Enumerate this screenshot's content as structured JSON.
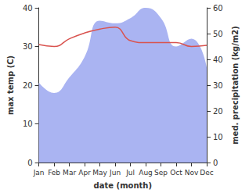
{
  "chart_data": {
    "type": "line",
    "categories": [
      "Jan",
      "Feb",
      "Mar",
      "Apr",
      "May",
      "Jun",
      "Jul",
      "Aug",
      "Sep",
      "Oct",
      "Nov",
      "Dec"
    ],
    "x_label": "date (month)",
    "y_label": "max temp (C)",
    "y2_label": "med. precipitation (kg/m2)",
    "ylim": [
      0,
      40
    ],
    "yticks": [
      0,
      10,
      20,
      30,
      40
    ],
    "y2lim": [
      0,
      60
    ],
    "y2ticks": [
      0,
      10,
      20,
      30,
      40,
      50,
      60
    ],
    "grid": false,
    "series": [
      {
        "name": "med. precipitation",
        "type": "area",
        "axis": "y2",
        "color": "#aab4f2",
        "values": [
          31,
          27,
          33,
          41,
          55,
          54,
          56,
          60,
          56,
          45,
          48,
          37
        ]
      },
      {
        "name": "max temp",
        "type": "line",
        "axis": "y",
        "color": "#d9534f",
        "values": [
          30.5,
          30,
          32,
          33.5,
          34.5,
          35,
          31.5,
          31,
          31,
          31,
          30,
          30.3
        ]
      }
    ]
  }
}
